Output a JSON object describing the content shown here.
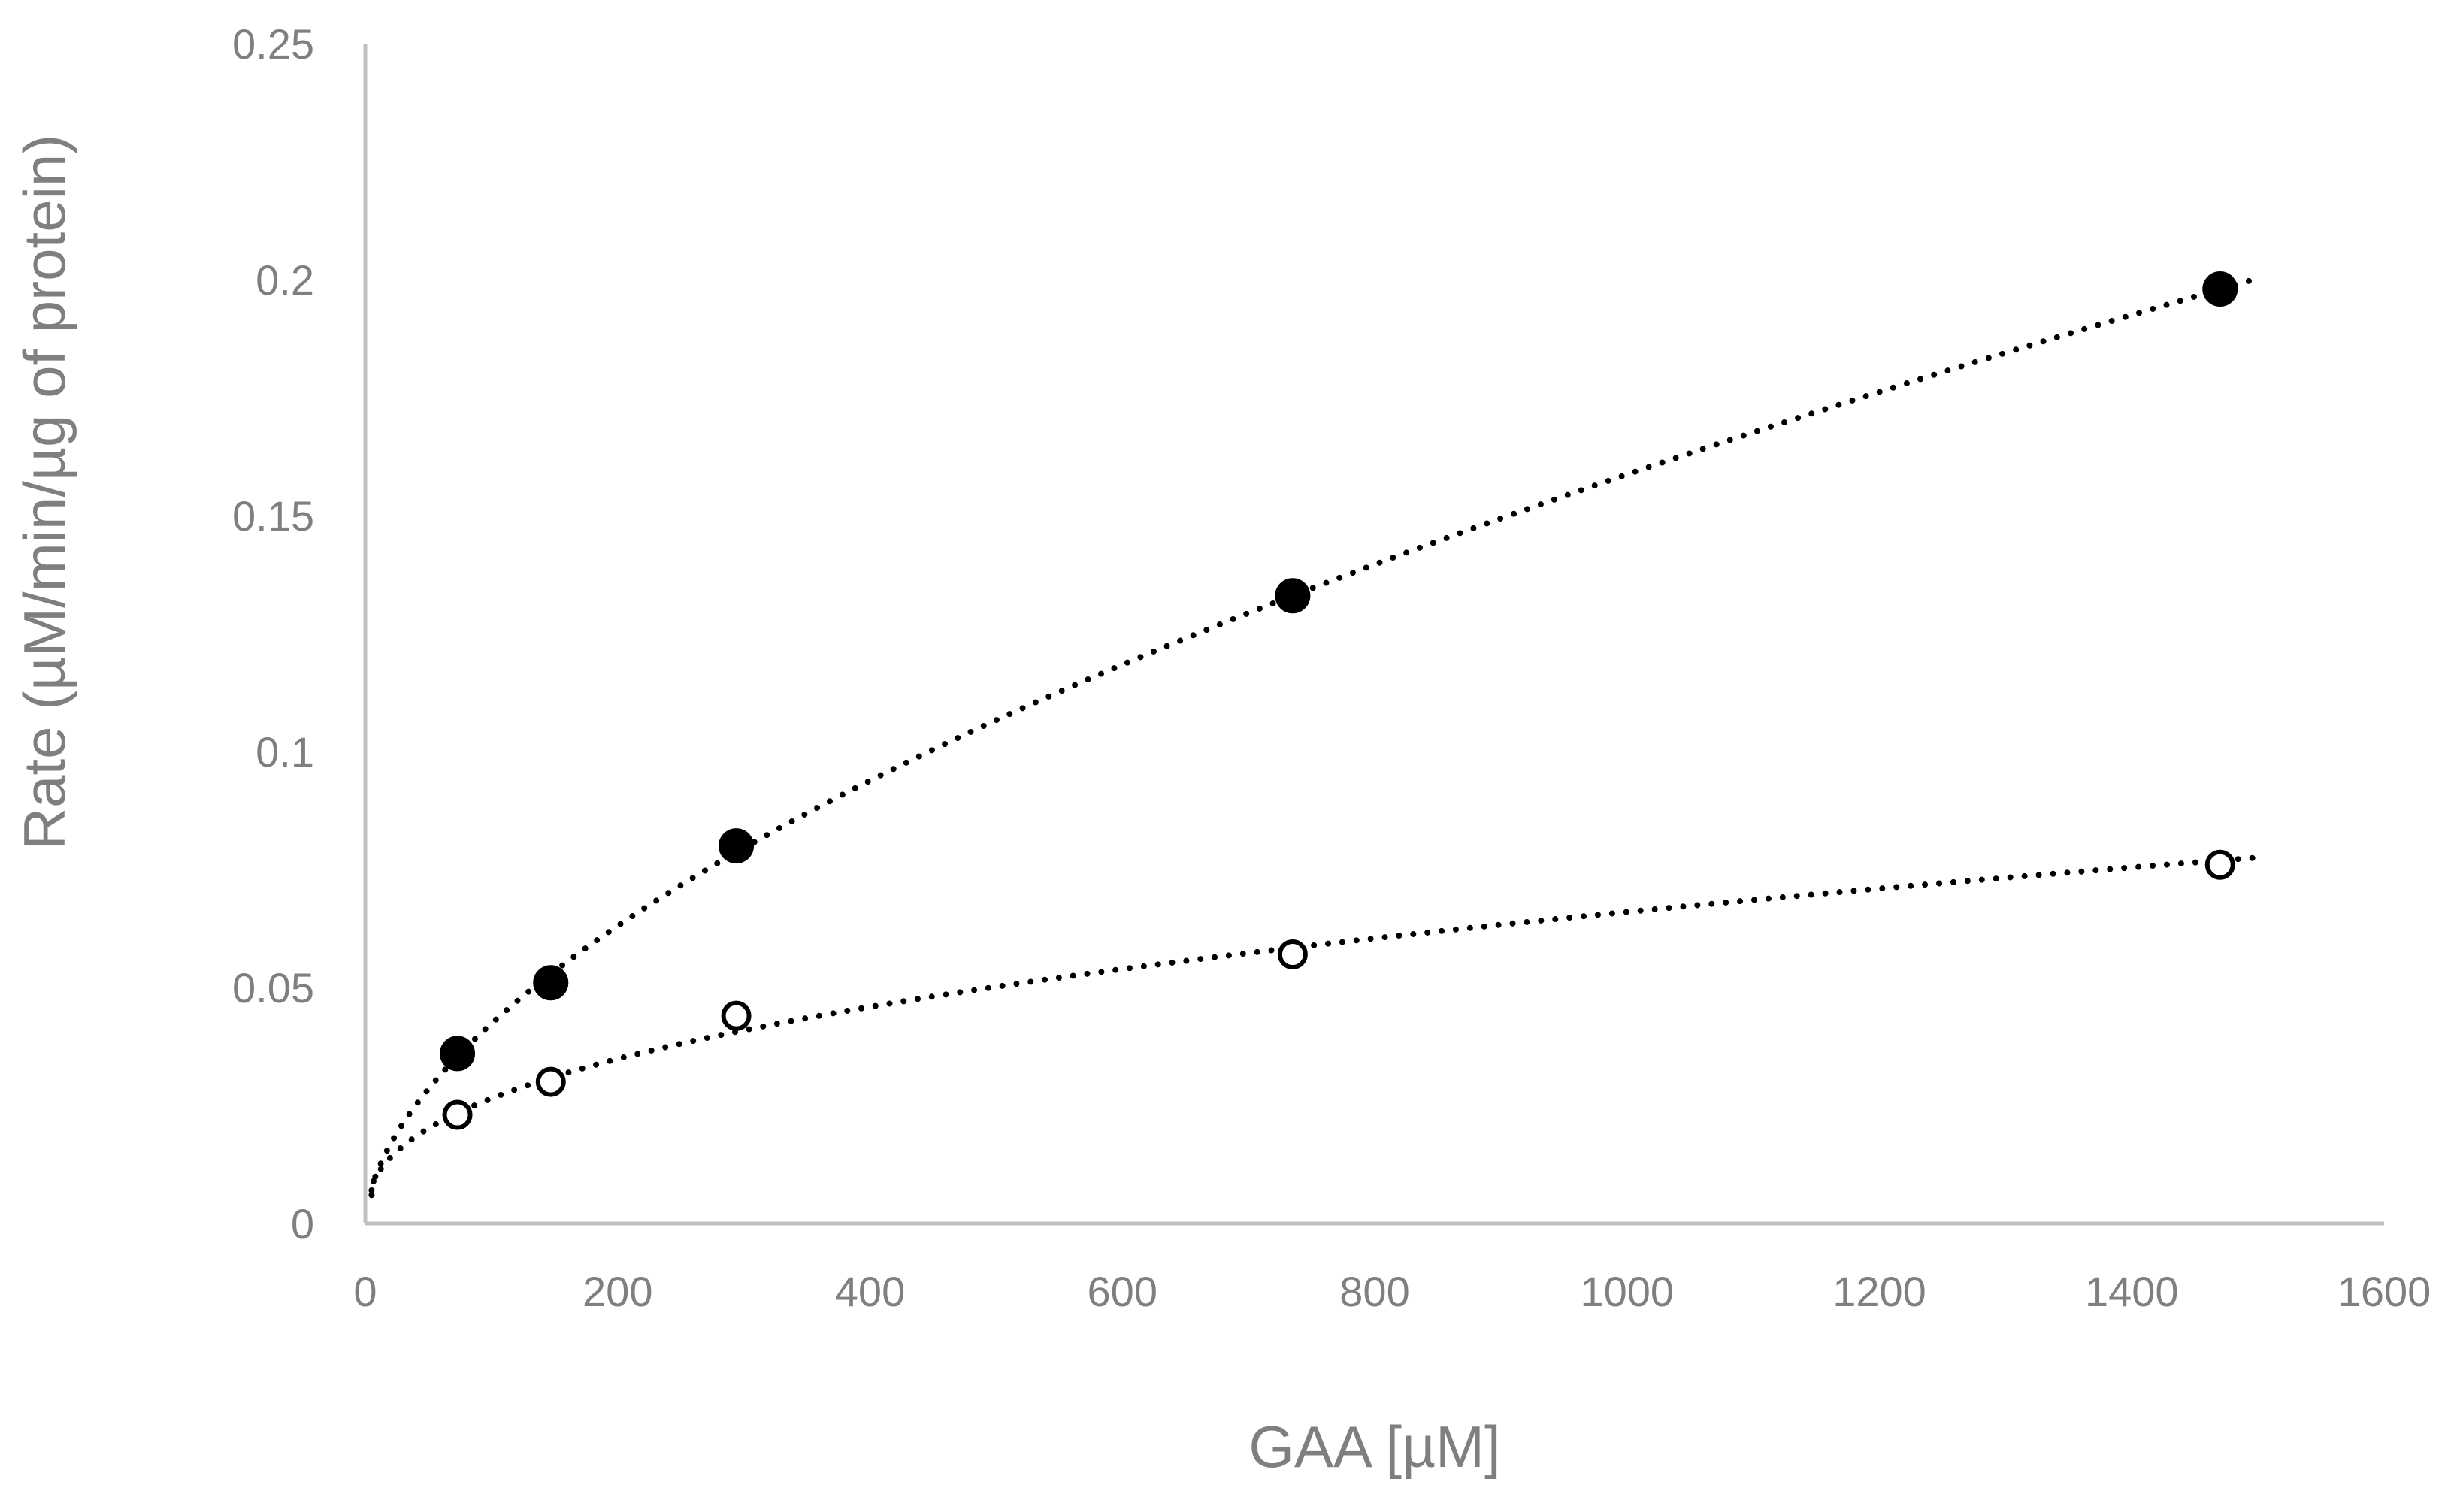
{
  "chart_data": {
    "type": "scatter",
    "xlabel": "GAA [µM]",
    "ylabel": "Rate (µM/min/µg of protein)",
    "xlim": [
      0,
      1600
    ],
    "ylim": [
      0,
      0.25
    ],
    "x_ticks": [
      "0",
      "200",
      "400",
      "600",
      "800",
      "1000",
      "1200",
      "1400",
      "1600"
    ],
    "y_ticks": [
      "0",
      "0.05",
      "0.1",
      "0.15",
      "0.2",
      "0.25"
    ],
    "grid": false,
    "legend": "none",
    "series": [
      {
        "marker": "filled-circle",
        "color": "#000000",
        "x": [
          73,
          147,
          294,
          735,
          1470
        ],
        "y": [
          0.036,
          0.051,
          0.08,
          0.133,
          0.198
        ],
        "trendline": "power",
        "trend_x": [
          5,
          1500
        ],
        "trend_y_start": 0.007
      },
      {
        "marker": "open-circle",
        "color": "#000000",
        "x": [
          73,
          147,
          294,
          735,
          1470
        ],
        "y": [
          0.023,
          0.03,
          0.044,
          0.057,
          0.076
        ],
        "trendline": "power",
        "trend_x": [
          5,
          1500
        ],
        "trend_y_start": 0.006
      }
    ]
  }
}
